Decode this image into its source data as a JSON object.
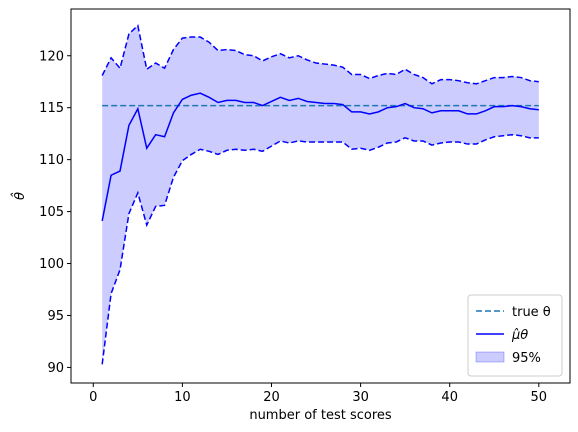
{
  "chart_data": {
    "type": "line",
    "xlabel": "number of test scores",
    "ylabel": "θ̂",
    "xlim": [
      -2.5,
      53.5
    ],
    "ylim": [
      88.5,
      124.5
    ],
    "xticks": [
      0,
      10,
      20,
      30,
      40,
      50
    ],
    "yticks": [
      90,
      95,
      100,
      105,
      110,
      115,
      120
    ],
    "legend_position": "bottom-right",
    "x": [
      1,
      2,
      3,
      4,
      5,
      6,
      7,
      8,
      9,
      10,
      11,
      12,
      13,
      14,
      15,
      16,
      17,
      18,
      19,
      20,
      21,
      22,
      23,
      24,
      25,
      26,
      27,
      28,
      29,
      30,
      31,
      32,
      33,
      34,
      35,
      36,
      37,
      38,
      39,
      40,
      41,
      42,
      43,
      44,
      45,
      46,
      47,
      48,
      49,
      50
    ],
    "series": [
      {
        "name": "true θ",
        "color": "#1f77b4",
        "style": "dashed",
        "values": [
          115.2,
          115.2,
          115.2,
          115.2,
          115.2,
          115.2,
          115.2,
          115.2,
          115.2,
          115.2,
          115.2,
          115.2,
          115.2,
          115.2,
          115.2,
          115.2,
          115.2,
          115.2,
          115.2,
          115.2,
          115.2,
          115.2,
          115.2,
          115.2,
          115.2,
          115.2,
          115.2,
          115.2,
          115.2,
          115.2,
          115.2,
          115.2,
          115.2,
          115.2,
          115.2,
          115.2,
          115.2,
          115.2,
          115.2,
          115.2,
          115.2,
          115.2,
          115.2,
          115.2,
          115.2,
          115.2,
          115.2,
          115.2,
          115.2,
          115.2
        ]
      },
      {
        "name": "μ̂θ",
        "color": "#0000ff",
        "style": "solid",
        "values": [
          104.1,
          108.5,
          108.9,
          113.3,
          114.9,
          111.1,
          112.4,
          112.2,
          114.5,
          115.8,
          116.2,
          116.4,
          116.0,
          115.5,
          115.7,
          115.7,
          115.5,
          115.5,
          115.2,
          115.6,
          116.0,
          115.7,
          115.9,
          115.6,
          115.5,
          115.4,
          115.4,
          115.3,
          114.6,
          114.6,
          114.4,
          114.6,
          115.0,
          115.1,
          115.4,
          115.0,
          114.9,
          114.5,
          114.7,
          114.7,
          114.7,
          114.4,
          114.4,
          114.7,
          115.1,
          115.1,
          115.2,
          115.1,
          114.9,
          114.8
        ]
      }
    ],
    "band": {
      "name": "95%",
      "color": "#0000ff",
      "fill_opacity": 0.2,
      "upper": [
        118.1,
        119.8,
        118.8,
        122.1,
        122.9,
        118.7,
        119.3,
        118.8,
        120.6,
        121.7,
        121.8,
        121.8,
        121.3,
        120.5,
        120.6,
        120.5,
        120.1,
        120.0,
        119.5,
        119.9,
        120.2,
        119.8,
        120.0,
        119.6,
        119.3,
        119.2,
        119.1,
        118.9,
        118.2,
        118.2,
        117.8,
        118.1,
        118.3,
        118.2,
        118.7,
        118.2,
        117.9,
        117.3,
        117.7,
        117.7,
        117.6,
        117.4,
        117.3,
        117.6,
        117.9,
        117.9,
        118.0,
        117.9,
        117.6,
        117.5
      ],
      "lower": [
        90.3,
        97.1,
        99.4,
        104.8,
        106.8,
        103.7,
        105.5,
        105.6,
        108.3,
        109.9,
        110.5,
        111.0,
        110.8,
        110.5,
        110.9,
        111.0,
        110.9,
        111.0,
        110.8,
        111.3,
        111.8,
        111.6,
        111.8,
        111.7,
        111.7,
        111.7,
        111.7,
        111.7,
        111.0,
        111.1,
        110.9,
        111.2,
        111.6,
        111.7,
        112.1,
        111.8,
        111.8,
        111.4,
        111.6,
        111.7,
        111.7,
        111.5,
        111.5,
        111.9,
        112.2,
        112.3,
        112.4,
        112.3,
        112.1,
        112.1
      ]
    }
  }
}
